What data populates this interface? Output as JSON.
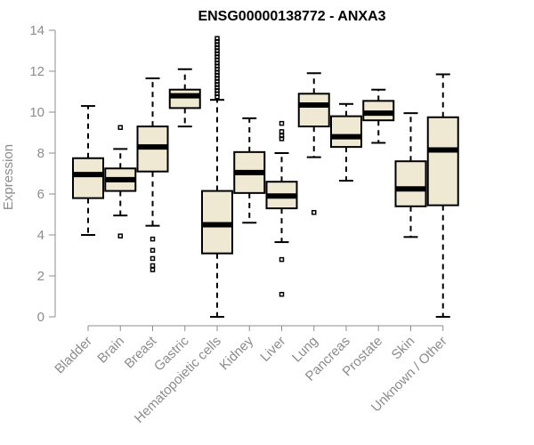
{
  "chart_data": {
    "type": "boxplot",
    "title": "ENSG00000138772 - ANXA3",
    "xlabel": "",
    "ylabel": "Expression",
    "ylim": [
      0,
      14
    ],
    "yticks": [
      0,
      2,
      4,
      6,
      8,
      10,
      12,
      14
    ],
    "grid": false,
    "box_fill": "#efe8d2",
    "axis_color": "#8c8c8c",
    "categories": [
      "Bladder",
      "Brain",
      "Breast",
      "Gastric",
      "Hematopoietic cells",
      "Kidney",
      "Liver",
      "Lung",
      "Pancreas",
      "Prostate",
      "Skin",
      "Unknown / Other"
    ],
    "boxes": [
      {
        "category": "Bladder",
        "whisker_low": 4.0,
        "q1": 5.8,
        "median": 6.95,
        "q3": 7.75,
        "whisker_high": 10.3,
        "outliers": []
      },
      {
        "category": "Brain",
        "whisker_low": 4.95,
        "q1": 6.15,
        "median": 6.7,
        "q3": 7.25,
        "whisker_high": 8.2,
        "outliers": [
          3.95,
          9.25
        ]
      },
      {
        "category": "Breast",
        "whisker_low": 4.45,
        "q1": 7.1,
        "median": 8.3,
        "q3": 9.3,
        "whisker_high": 11.65,
        "outliers": [
          3.8,
          3.25,
          2.85,
          2.5,
          2.3
        ]
      },
      {
        "category": "Gastric",
        "whisker_low": 9.3,
        "q1": 10.2,
        "median": 10.8,
        "q3": 11.1,
        "whisker_high": 12.1,
        "outliers": []
      },
      {
        "category": "Hematopoietic cells",
        "whisker_low": 0.0,
        "q1": 3.1,
        "median": 4.5,
        "q3": 6.15,
        "whisker_high": 10.6,
        "outliers": [
          10.75,
          10.9,
          11.05,
          11.2,
          11.35,
          11.5,
          11.65,
          11.8,
          11.95,
          12.1,
          12.25,
          12.4,
          12.55,
          12.7,
          12.85,
          13.0,
          13.15,
          13.3,
          13.45,
          13.6
        ]
      },
      {
        "category": "Kidney",
        "whisker_low": 4.6,
        "q1": 6.05,
        "median": 7.05,
        "q3": 8.05,
        "whisker_high": 9.7,
        "outliers": []
      },
      {
        "category": "Liver",
        "whisker_low": 3.65,
        "q1": 5.3,
        "median": 5.9,
        "q3": 6.6,
        "whisker_high": 8.0,
        "outliers": [
          2.8,
          1.1,
          8.7,
          8.85,
          9.05,
          9.45
        ]
      },
      {
        "category": "Lung",
        "whisker_low": 7.8,
        "q1": 9.3,
        "median": 10.35,
        "q3": 10.9,
        "whisker_high": 11.9,
        "outliers": [
          5.1
        ]
      },
      {
        "category": "Pancreas",
        "whisker_low": 6.65,
        "q1": 8.3,
        "median": 8.8,
        "q3": 9.8,
        "whisker_high": 10.4,
        "outliers": []
      },
      {
        "category": "Prostate",
        "whisker_low": 8.5,
        "q1": 9.6,
        "median": 9.95,
        "q3": 10.55,
        "whisker_high": 11.1,
        "outliers": []
      },
      {
        "category": "Skin",
        "whisker_low": 3.9,
        "q1": 5.4,
        "median": 6.25,
        "q3": 7.6,
        "whisker_high": 9.95,
        "outliers": []
      },
      {
        "category": "Unknown / Other",
        "whisker_low": 0.0,
        "q1": 5.45,
        "median": 8.15,
        "q3": 9.75,
        "whisker_high": 11.85,
        "outliers": []
      }
    ]
  }
}
